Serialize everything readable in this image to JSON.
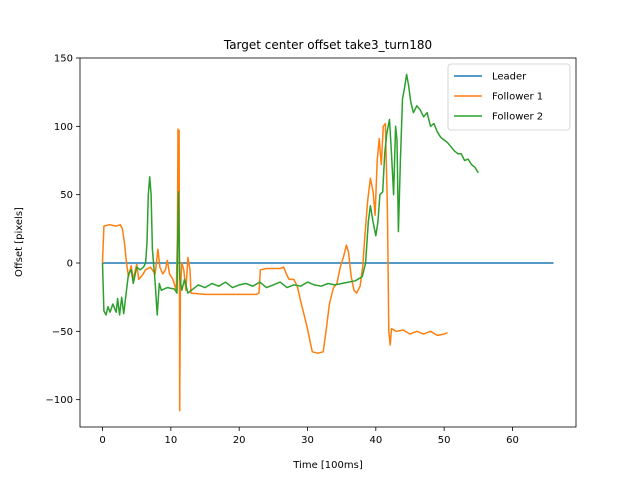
{
  "chart_data": {
    "type": "line",
    "title": "Target center offset take3_turn180",
    "xlabel": "Time [100ms]",
    "ylabel": "Offset [pixels]",
    "xlim": [
      -3.3,
      69.3
    ],
    "ylim": [
      -120,
      150
    ],
    "xticks": [
      0,
      10,
      20,
      30,
      40,
      50,
      60
    ],
    "yticks": [
      -100,
      -50,
      0,
      50,
      100,
      150
    ],
    "xtick_labels": [
      "0",
      "10",
      "20",
      "30",
      "40",
      "50",
      "60"
    ],
    "ytick_labels": [
      "−100",
      "−50",
      "0",
      "50",
      "100",
      "150"
    ],
    "grid": false,
    "legend_position": "top-right",
    "series": [
      {
        "name": "Leader",
        "color": "#1f77b4",
        "points": [
          [
            0,
            0
          ],
          [
            66,
            0
          ]
        ]
      },
      {
        "name": "Follower 1",
        "color": "#ff7f0e",
        "points": [
          [
            0,
            0
          ],
          [
            0.2,
            27
          ],
          [
            1,
            28
          ],
          [
            2,
            27
          ],
          [
            2.6,
            28
          ],
          [
            2.9,
            25
          ],
          [
            3.2,
            15
          ],
          [
            3.5,
            0
          ],
          [
            3.8,
            -10
          ],
          [
            4.2,
            -2
          ],
          [
            4.5,
            -12
          ],
          [
            5,
            -1
          ],
          [
            5.3,
            -12
          ],
          [
            5.8,
            -9
          ],
          [
            6.3,
            -5
          ],
          [
            7,
            -3
          ],
          [
            7.7,
            -8
          ],
          [
            8.1,
            10
          ],
          [
            8.4,
            -3
          ],
          [
            8.8,
            -8
          ],
          [
            9.2,
            -5
          ],
          [
            9.5,
            2
          ],
          [
            9.8,
            -8
          ],
          [
            10.3,
            -12
          ],
          [
            10.8,
            -20
          ],
          [
            10.95,
            20
          ],
          [
            11.05,
            98
          ],
          [
            11.15,
            30
          ],
          [
            11.2,
            97
          ],
          [
            11.25,
            10
          ],
          [
            11.3,
            -108
          ],
          [
            11.4,
            -20
          ],
          [
            11.6,
            0
          ],
          [
            11.9,
            -5
          ],
          [
            12.2,
            -20
          ],
          [
            12.5,
            4
          ],
          [
            12.8,
            -5
          ],
          [
            12.95,
            -22
          ],
          [
            15,
            -23
          ],
          [
            18,
            -23
          ],
          [
            20,
            -23
          ],
          [
            22.5,
            -23
          ],
          [
            22.9,
            -22
          ],
          [
            23.1,
            -5
          ],
          [
            24,
            -4
          ],
          [
            25,
            -4
          ],
          [
            26,
            -4
          ],
          [
            26.5,
            -3
          ],
          [
            26.9,
            -8
          ],
          [
            27.3,
            -12
          ],
          [
            28,
            -12
          ],
          [
            28.5,
            -17
          ],
          [
            29,
            -28
          ],
          [
            29.5,
            -38
          ],
          [
            30,
            -48
          ],
          [
            30.4,
            -58
          ],
          [
            30.7,
            -65
          ],
          [
            31.5,
            -66
          ],
          [
            32.3,
            -65
          ],
          [
            32.7,
            -50
          ],
          [
            33.2,
            -30
          ],
          [
            33.8,
            -18
          ],
          [
            34.3,
            -15
          ],
          [
            34.8,
            -3
          ],
          [
            35.3,
            5
          ],
          [
            35.7,
            13
          ],
          [
            36,
            8
          ],
          [
            36.4,
            -10
          ],
          [
            36.8,
            -20
          ],
          [
            37.2,
            -22
          ],
          [
            37.7,
            -17
          ],
          [
            38.1,
            -2
          ],
          [
            38.4,
            20
          ],
          [
            38.8,
            45
          ],
          [
            39.2,
            62
          ],
          [
            39.6,
            52
          ],
          [
            39.9,
            35
          ],
          [
            40.2,
            75
          ],
          [
            40.5,
            91
          ],
          [
            40.8,
            72
          ],
          [
            41.1,
            100
          ],
          [
            41.4,
            102
          ],
          [
            41.7,
            40
          ],
          [
            41.9,
            -50
          ],
          [
            42.1,
            -60
          ],
          [
            42.3,
            -48
          ],
          [
            43,
            -50
          ],
          [
            44,
            -49
          ],
          [
            45,
            -52
          ],
          [
            46,
            -50
          ],
          [
            47,
            -52
          ],
          [
            48,
            -50
          ],
          [
            49,
            -53
          ],
          [
            50,
            -52
          ],
          [
            50.5,
            -51
          ]
        ]
      },
      {
        "name": "Follower 2",
        "color": "#2ca02c",
        "points": [
          [
            0,
            0
          ],
          [
            0.2,
            -35
          ],
          [
            0.5,
            -38
          ],
          [
            0.8,
            -32
          ],
          [
            1.1,
            -36
          ],
          [
            1.5,
            -30
          ],
          [
            2,
            -36
          ],
          [
            2.2,
            -26
          ],
          [
            2.5,
            -38
          ],
          [
            2.8,
            -25
          ],
          [
            3.1,
            -37
          ],
          [
            3.5,
            -20
          ],
          [
            3.8,
            -8
          ],
          [
            4.2,
            -5
          ],
          [
            4.5,
            -15
          ],
          [
            5,
            -3
          ],
          [
            5.5,
            -5
          ],
          [
            6,
            -3
          ],
          [
            6.3,
            0
          ],
          [
            6.5,
            15
          ],
          [
            6.7,
            50
          ],
          [
            6.9,
            63
          ],
          [
            7.1,
            50
          ],
          [
            7.3,
            10
          ],
          [
            7.7,
            -15
          ],
          [
            8,
            -38
          ],
          [
            8.3,
            -15
          ],
          [
            8.6,
            -20
          ],
          [
            9.5,
            -18
          ],
          [
            10.5,
            -19
          ],
          [
            10.9,
            -22
          ],
          [
            11.1,
            52
          ],
          [
            11.3,
            -10
          ],
          [
            11.6,
            -20
          ],
          [
            12,
            -12
          ],
          [
            12.5,
            -22
          ],
          [
            13,
            -20
          ],
          [
            14,
            -16
          ],
          [
            15,
            -18
          ],
          [
            16,
            -15
          ],
          [
            17,
            -17
          ],
          [
            18,
            -14
          ],
          [
            19,
            -18
          ],
          [
            20,
            -16
          ],
          [
            21,
            -15
          ],
          [
            22,
            -17
          ],
          [
            23,
            -14
          ],
          [
            24,
            -18
          ],
          [
            25,
            -16
          ],
          [
            26,
            -14
          ],
          [
            27,
            -18
          ],
          [
            28,
            -16
          ],
          [
            29,
            -17
          ],
          [
            30,
            -14
          ],
          [
            31,
            -16
          ],
          [
            32,
            -17
          ],
          [
            33,
            -15
          ],
          [
            34,
            -16
          ],
          [
            35,
            -15
          ],
          [
            36,
            -14
          ],
          [
            37,
            -13
          ],
          [
            38,
            -10
          ],
          [
            38.5,
            0
          ],
          [
            38.9,
            30
          ],
          [
            39.2,
            42
          ],
          [
            39.6,
            30
          ],
          [
            40,
            20
          ],
          [
            40.3,
            30
          ],
          [
            40.6,
            50
          ],
          [
            41,
            52
          ],
          [
            41.3,
            80
          ],
          [
            41.6,
            95
          ],
          [
            42,
            105
          ],
          [
            42.3,
            80
          ],
          [
            42.6,
            50
          ],
          [
            42.9,
            100
          ],
          [
            43.1,
            90
          ],
          [
            43.3,
            23
          ],
          [
            43.6,
            75
          ],
          [
            43.9,
            120
          ],
          [
            44.2,
            128
          ],
          [
            44.5,
            138
          ],
          [
            44.8,
            130
          ],
          [
            45.1,
            118
          ],
          [
            45.5,
            110
          ],
          [
            46,
            115
          ],
          [
            46.5,
            112
          ],
          [
            47,
            107
          ],
          [
            47.5,
            110
          ],
          [
            48,
            100
          ],
          [
            48.5,
            102
          ],
          [
            49,
            96
          ],
          [
            49.5,
            92
          ],
          [
            50,
            90
          ],
          [
            50.5,
            88
          ],
          [
            51,
            85
          ],
          [
            51.5,
            82
          ],
          [
            52,
            80
          ],
          [
            52.5,
            80
          ],
          [
            53,
            75
          ],
          [
            53.5,
            76
          ],
          [
            54,
            72
          ],
          [
            54.5,
            70
          ],
          [
            55,
            66
          ]
        ]
      }
    ]
  }
}
